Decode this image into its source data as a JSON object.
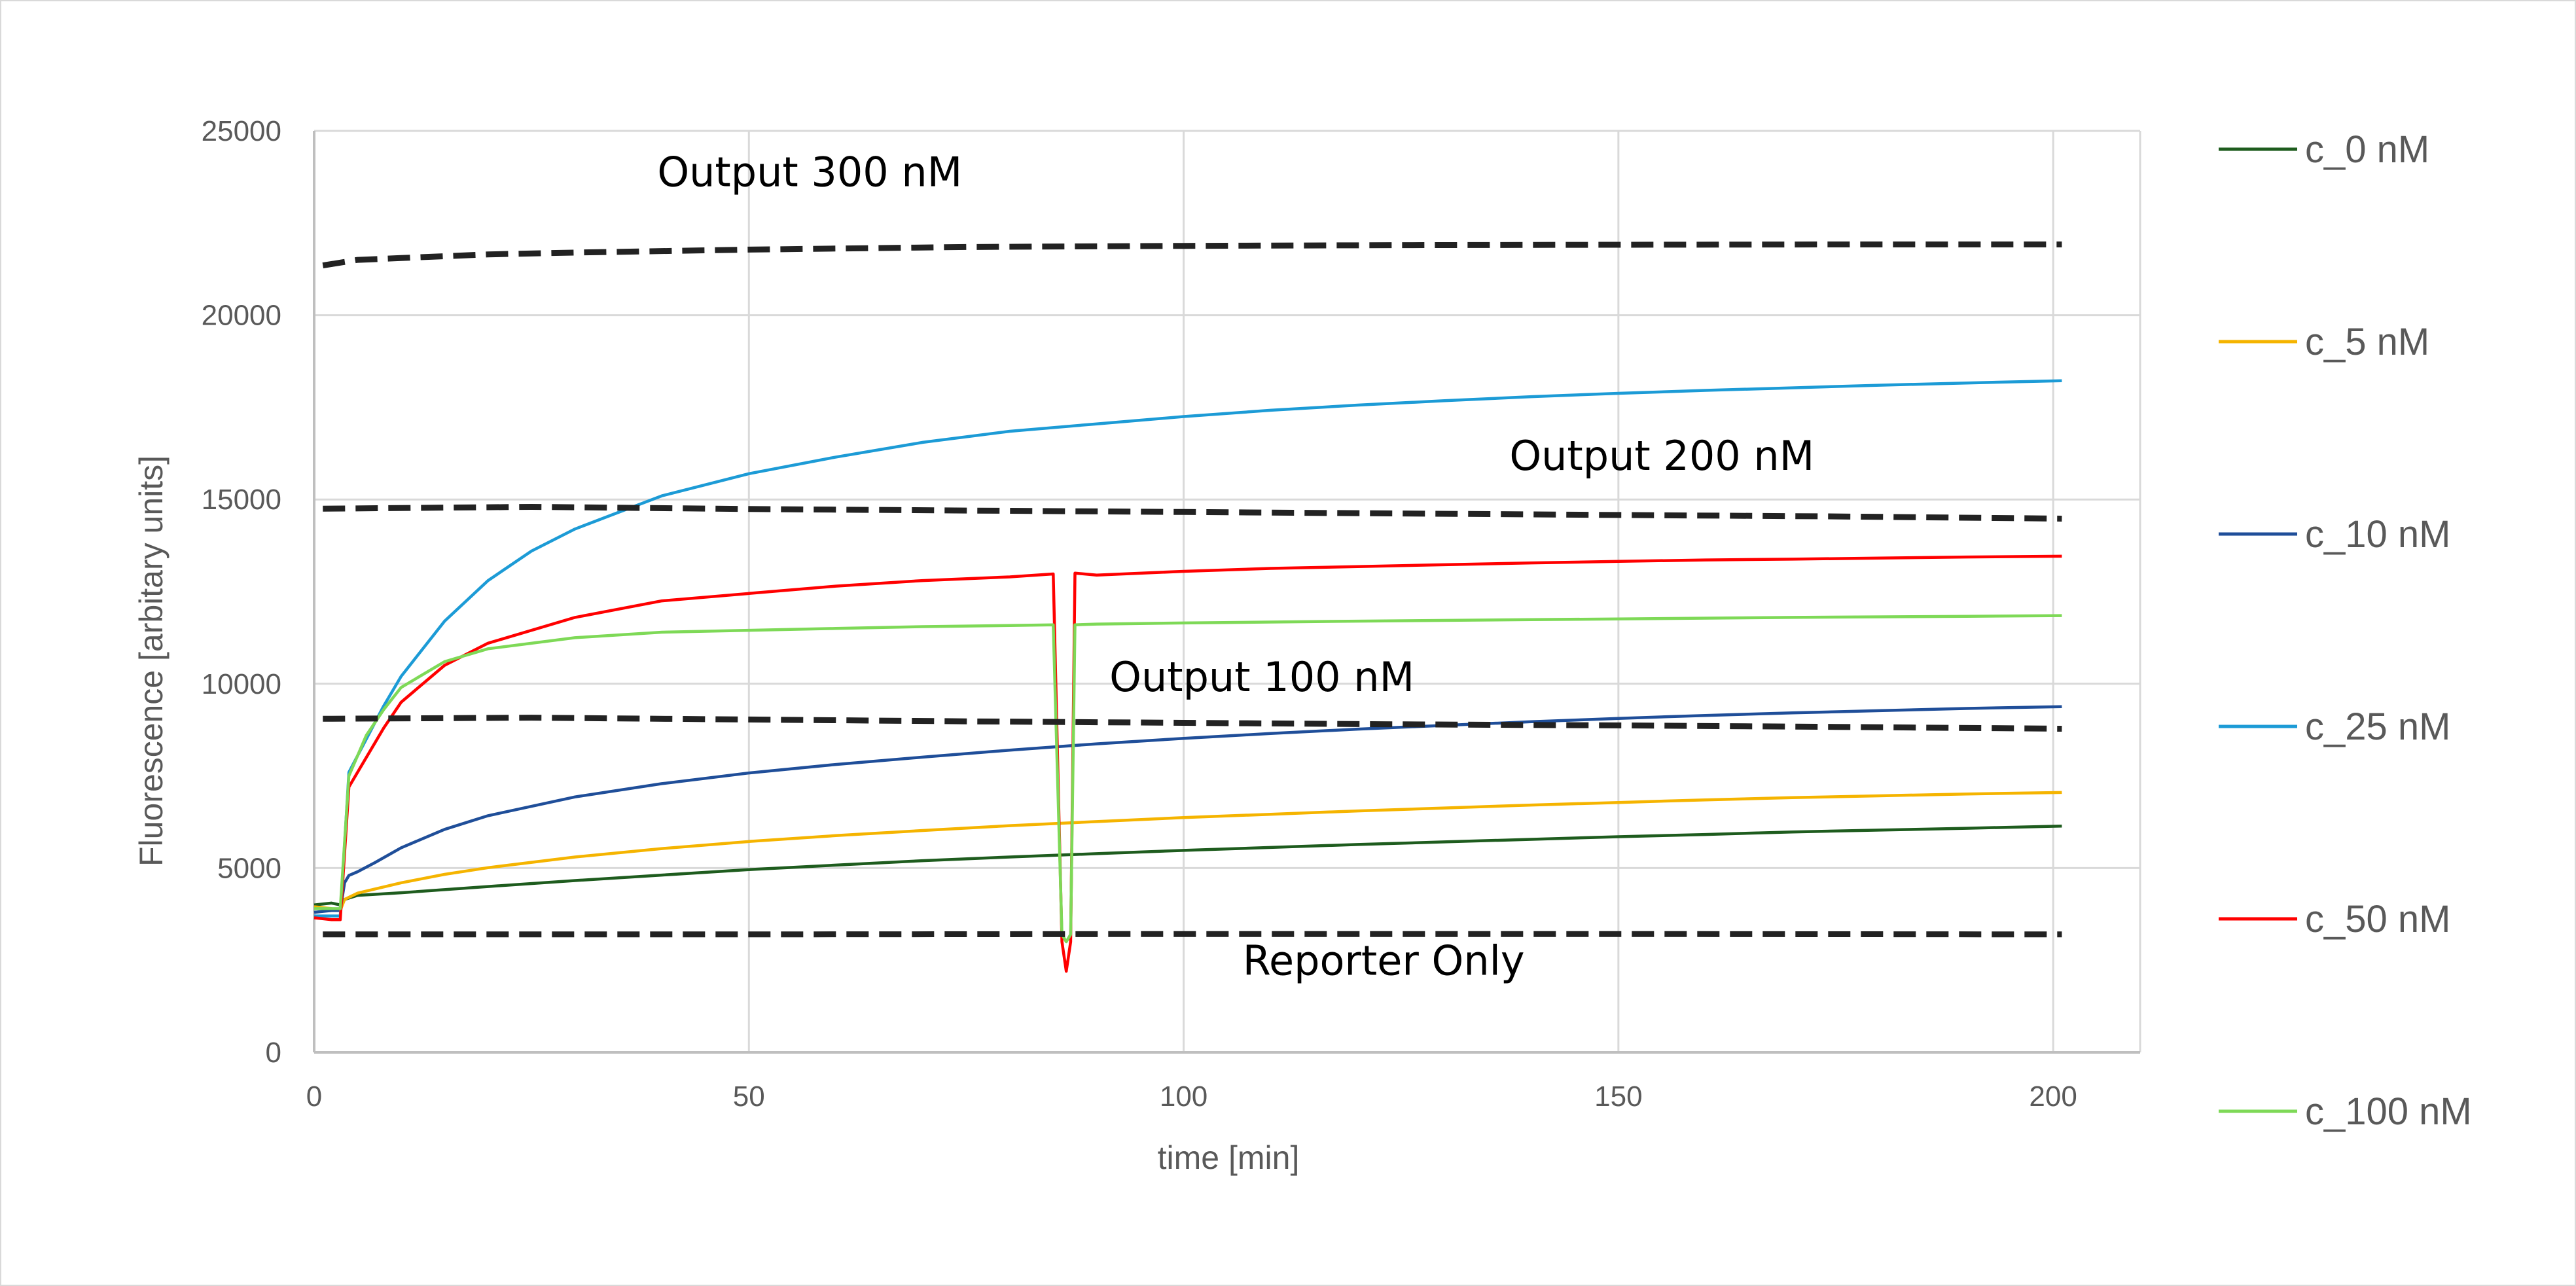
{
  "chart_data": {
    "type": "line",
    "title": "",
    "xlabel": "time [min]",
    "ylabel": "Fluorescence [arbitary units]",
    "xlim": [
      0,
      210
    ],
    "ylim": [
      0,
      25000
    ],
    "x_ticks": [
      0,
      50,
      100,
      150,
      200
    ],
    "y_ticks": [
      0,
      5000,
      10000,
      15000,
      20000,
      25000
    ],
    "grid": true,
    "legend_position": "right",
    "series": [
      {
        "name": "c_0 nM",
        "color": "#1e5c1e",
        "style": "solid",
        "points": [
          [
            0,
            4000
          ],
          [
            2,
            4050
          ],
          [
            3,
            4000
          ],
          [
            3.5,
            4150
          ],
          [
            5,
            4260
          ],
          [
            10,
            4330
          ],
          [
            20,
            4500
          ],
          [
            30,
            4660
          ],
          [
            40,
            4810
          ],
          [
            50,
            4960
          ],
          [
            60,
            5080
          ],
          [
            70,
            5200
          ],
          [
            80,
            5300
          ],
          [
            90,
            5390
          ],
          [
            100,
            5480
          ],
          [
            110,
            5560
          ],
          [
            120,
            5640
          ],
          [
            130,
            5710
          ],
          [
            140,
            5780
          ],
          [
            150,
            5850
          ],
          [
            160,
            5910
          ],
          [
            170,
            5980
          ],
          [
            180,
            6030
          ],
          [
            190,
            6080
          ],
          [
            201,
            6140
          ]
        ]
      },
      {
        "name": "c_5 nM",
        "color": "#f5b400",
        "style": "solid",
        "points": [
          [
            0,
            3950
          ],
          [
            2,
            3900
          ],
          [
            3,
            3850
          ],
          [
            3.5,
            4150
          ],
          [
            5,
            4320
          ],
          [
            10,
            4600
          ],
          [
            15,
            4830
          ],
          [
            20,
            5010
          ],
          [
            30,
            5300
          ],
          [
            40,
            5530
          ],
          [
            50,
            5720
          ],
          [
            60,
            5880
          ],
          [
            70,
            6020
          ],
          [
            80,
            6150
          ],
          [
            90,
            6260
          ],
          [
            100,
            6370
          ],
          [
            110,
            6460
          ],
          [
            120,
            6550
          ],
          [
            130,
            6630
          ],
          [
            140,
            6710
          ],
          [
            150,
            6780
          ],
          [
            160,
            6850
          ],
          [
            170,
            6910
          ],
          [
            180,
            6960
          ],
          [
            190,
            7010
          ],
          [
            201,
            7050
          ]
        ]
      },
      {
        "name": "c_10 nM",
        "color": "#1f4e99",
        "style": "solid",
        "points": [
          [
            0,
            3800
          ],
          [
            2,
            3850
          ],
          [
            3,
            3850
          ],
          [
            3.5,
            4600
          ],
          [
            4,
            4800
          ],
          [
            5,
            4900
          ],
          [
            7,
            5150
          ],
          [
            10,
            5550
          ],
          [
            15,
            6050
          ],
          [
            20,
            6420
          ],
          [
            30,
            6930
          ],
          [
            40,
            7290
          ],
          [
            50,
            7580
          ],
          [
            60,
            7810
          ],
          [
            70,
            8010
          ],
          [
            80,
            8200
          ],
          [
            90,
            8370
          ],
          [
            100,
            8520
          ],
          [
            110,
            8650
          ],
          [
            120,
            8770
          ],
          [
            130,
            8870
          ],
          [
            140,
            8970
          ],
          [
            150,
            9060
          ],
          [
            160,
            9140
          ],
          [
            170,
            9210
          ],
          [
            180,
            9270
          ],
          [
            190,
            9330
          ],
          [
            201,
            9380
          ]
        ]
      },
      {
        "name": "c_25 nM",
        "color": "#1c9bd6",
        "style": "solid",
        "points": [
          [
            0,
            3700
          ],
          [
            2,
            3700
          ],
          [
            3,
            3700
          ],
          [
            4,
            7600
          ],
          [
            6,
            8500
          ],
          [
            8,
            9400
          ],
          [
            10,
            10200
          ],
          [
            15,
            11700
          ],
          [
            20,
            12800
          ],
          [
            25,
            13600
          ],
          [
            30,
            14200
          ],
          [
            35,
            14650
          ],
          [
            40,
            15100
          ],
          [
            50,
            15700
          ],
          [
            60,
            16150
          ],
          [
            70,
            16550
          ],
          [
            80,
            16850
          ],
          [
            90,
            17050
          ],
          [
            100,
            17250
          ],
          [
            110,
            17420
          ],
          [
            120,
            17560
          ],
          [
            130,
            17680
          ],
          [
            140,
            17790
          ],
          [
            150,
            17880
          ],
          [
            160,
            17960
          ],
          [
            170,
            18030
          ],
          [
            180,
            18100
          ],
          [
            190,
            18160
          ],
          [
            201,
            18220
          ]
        ]
      },
      {
        "name": "c_50 nM",
        "color": "#ff0000",
        "style": "solid",
        "points": [
          [
            0,
            3650
          ],
          [
            2,
            3600
          ],
          [
            3,
            3600
          ],
          [
            4,
            7200
          ],
          [
            6,
            8000
          ],
          [
            8,
            8800
          ],
          [
            10,
            9500
          ],
          [
            15,
            10500
          ],
          [
            20,
            11100
          ],
          [
            30,
            11800
          ],
          [
            40,
            12250
          ],
          [
            50,
            12450
          ],
          [
            60,
            12650
          ],
          [
            70,
            12800
          ],
          [
            80,
            12900
          ],
          [
            85,
            12980
          ],
          [
            86,
            3000
          ],
          [
            86.5,
            2200
          ],
          [
            87,
            3000
          ],
          [
            87.5,
            13000
          ],
          [
            90,
            12950
          ],
          [
            100,
            13050
          ],
          [
            110,
            13130
          ],
          [
            120,
            13180
          ],
          [
            130,
            13230
          ],
          [
            140,
            13280
          ],
          [
            150,
            13320
          ],
          [
            160,
            13360
          ],
          [
            170,
            13380
          ],
          [
            180,
            13410
          ],
          [
            190,
            13440
          ],
          [
            201,
            13460
          ]
        ]
      },
      {
        "name": "c_100 nM",
        "color": "#7ed957",
        "style": "solid",
        "points": [
          [
            0,
            3900
          ],
          [
            2,
            3900
          ],
          [
            3,
            3900
          ],
          [
            4,
            7500
          ],
          [
            6,
            8600
          ],
          [
            8,
            9300
          ],
          [
            10,
            9900
          ],
          [
            15,
            10600
          ],
          [
            20,
            10950
          ],
          [
            30,
            11250
          ],
          [
            40,
            11400
          ],
          [
            50,
            11450
          ],
          [
            60,
            11500
          ],
          [
            70,
            11550
          ],
          [
            80,
            11580
          ],
          [
            85,
            11600
          ],
          [
            86,
            3200
          ],
          [
            86.5,
            3000
          ],
          [
            87,
            3200
          ],
          [
            87.5,
            11600
          ],
          [
            90,
            11620
          ],
          [
            100,
            11650
          ],
          [
            120,
            11700
          ],
          [
            140,
            11740
          ],
          [
            150,
            11760
          ],
          [
            170,
            11800
          ],
          [
            190,
            11830
          ],
          [
            201,
            11850
          ]
        ]
      },
      {
        "name": "Output 300 nM",
        "color": "#222222",
        "style": "dashed",
        "points": [
          [
            1,
            21350
          ],
          [
            5,
            21500
          ],
          [
            10,
            21550
          ],
          [
            20,
            21650
          ],
          [
            30,
            21700
          ],
          [
            50,
            21780
          ],
          [
            75,
            21850
          ],
          [
            100,
            21880
          ],
          [
            125,
            21900
          ],
          [
            150,
            21910
          ],
          [
            175,
            21920
          ],
          [
            201,
            21920
          ]
        ]
      },
      {
        "name": "Output 200 nM",
        "color": "#222222",
        "style": "dashed",
        "points": [
          [
            1,
            14750
          ],
          [
            25,
            14800
          ],
          [
            50,
            14740
          ],
          [
            75,
            14700
          ],
          [
            100,
            14660
          ],
          [
            125,
            14620
          ],
          [
            150,
            14580
          ],
          [
            175,
            14540
          ],
          [
            201,
            14480
          ]
        ]
      },
      {
        "name": "Output 100 nM",
        "color": "#222222",
        "style": "dashed",
        "points": [
          [
            1,
            9050
          ],
          [
            25,
            9080
          ],
          [
            50,
            9030
          ],
          [
            75,
            8980
          ],
          [
            100,
            8940
          ],
          [
            125,
            8900
          ],
          [
            150,
            8870
          ],
          [
            175,
            8830
          ],
          [
            201,
            8780
          ]
        ]
      },
      {
        "name": "Reporter Only",
        "color": "#222222",
        "style": "dashed",
        "points": [
          [
            1,
            3200
          ],
          [
            50,
            3200
          ],
          [
            100,
            3210
          ],
          [
            150,
            3210
          ],
          [
            201,
            3200
          ]
        ]
      }
    ],
    "legend": [
      "c_0 nM",
      "c_5 nM",
      "c_10 nM",
      "c_25 nM",
      "c_50 nM",
      "c_100 nM"
    ],
    "annotations": [
      {
        "text": "Output 300 nM",
        "x": 57,
        "y": 23500
      },
      {
        "text": "Output 200 nM",
        "x": 155,
        "y": 15800
      },
      {
        "text": "Output 100 nM",
        "x": 109,
        "y": 9800
      },
      {
        "text": "Reporter Only",
        "x": 123,
        "y": 2100
      }
    ]
  }
}
